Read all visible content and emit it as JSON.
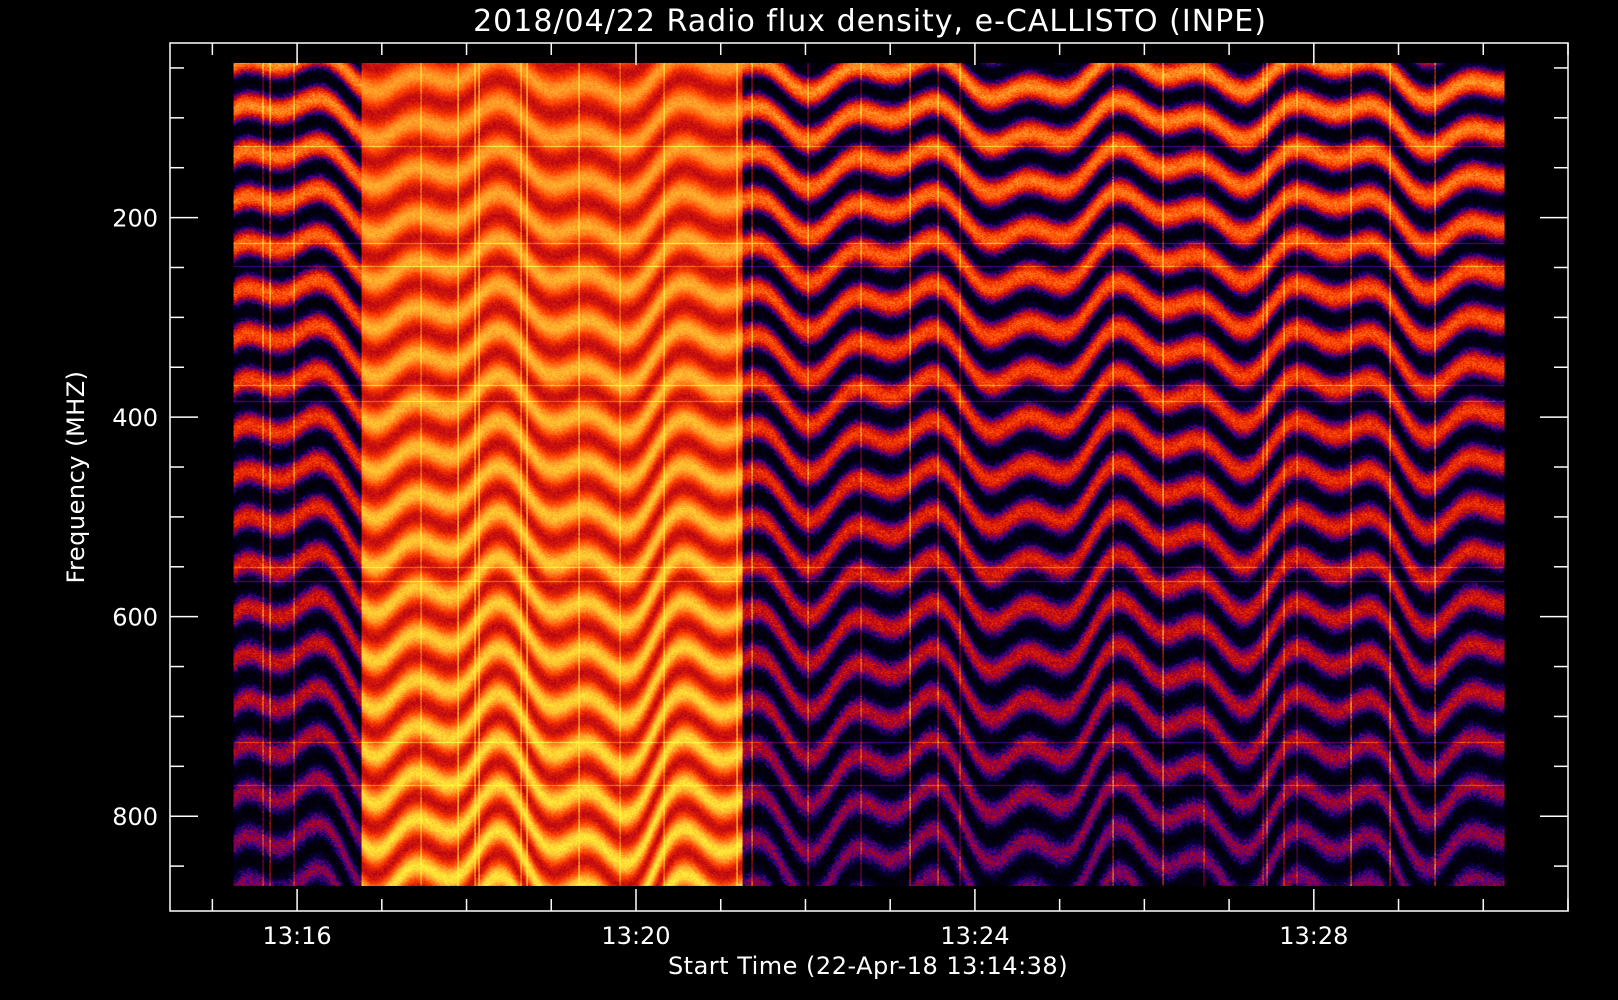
{
  "chart_data": {
    "type": "heatmap",
    "title": "2018/04/22  Radio flux density, e-CALLISTO (INPE)",
    "xlabel": "Start Time (22-Apr-18 13:14:38)",
    "ylabel": "Frequency (MHZ)",
    "x_tick_labels": [
      "13:16",
      "13:20",
      "13:24",
      "13:28"
    ],
    "x_tick_minutes": [
      16,
      20,
      24,
      28
    ],
    "x_range_minutes": [
      14.5,
      31.0
    ],
    "x_data_range_minutes": [
      15.25,
      30.25
    ],
    "y_tick_labels": [
      "200",
      "400",
      "600",
      "800"
    ],
    "y_tick_values": [
      200,
      400,
      600,
      800
    ],
    "y_range": [
      25,
      895
    ],
    "y_data_range": [
      45,
      870
    ],
    "y_inverted": true,
    "colormap": [
      "#000000",
      "#1e00c8",
      "#b40014",
      "#ff3c00",
      "#ff9a28",
      "#ffff3c"
    ],
    "segments": [
      {
        "minute_start": 15.25,
        "minute_end": 16.75,
        "level": "medium"
      },
      {
        "minute_start": 16.75,
        "minute_end": 21.25,
        "level": "high"
      },
      {
        "minute_start": 21.25,
        "minute_end": 30.25,
        "level": "medium"
      }
    ]
  }
}
